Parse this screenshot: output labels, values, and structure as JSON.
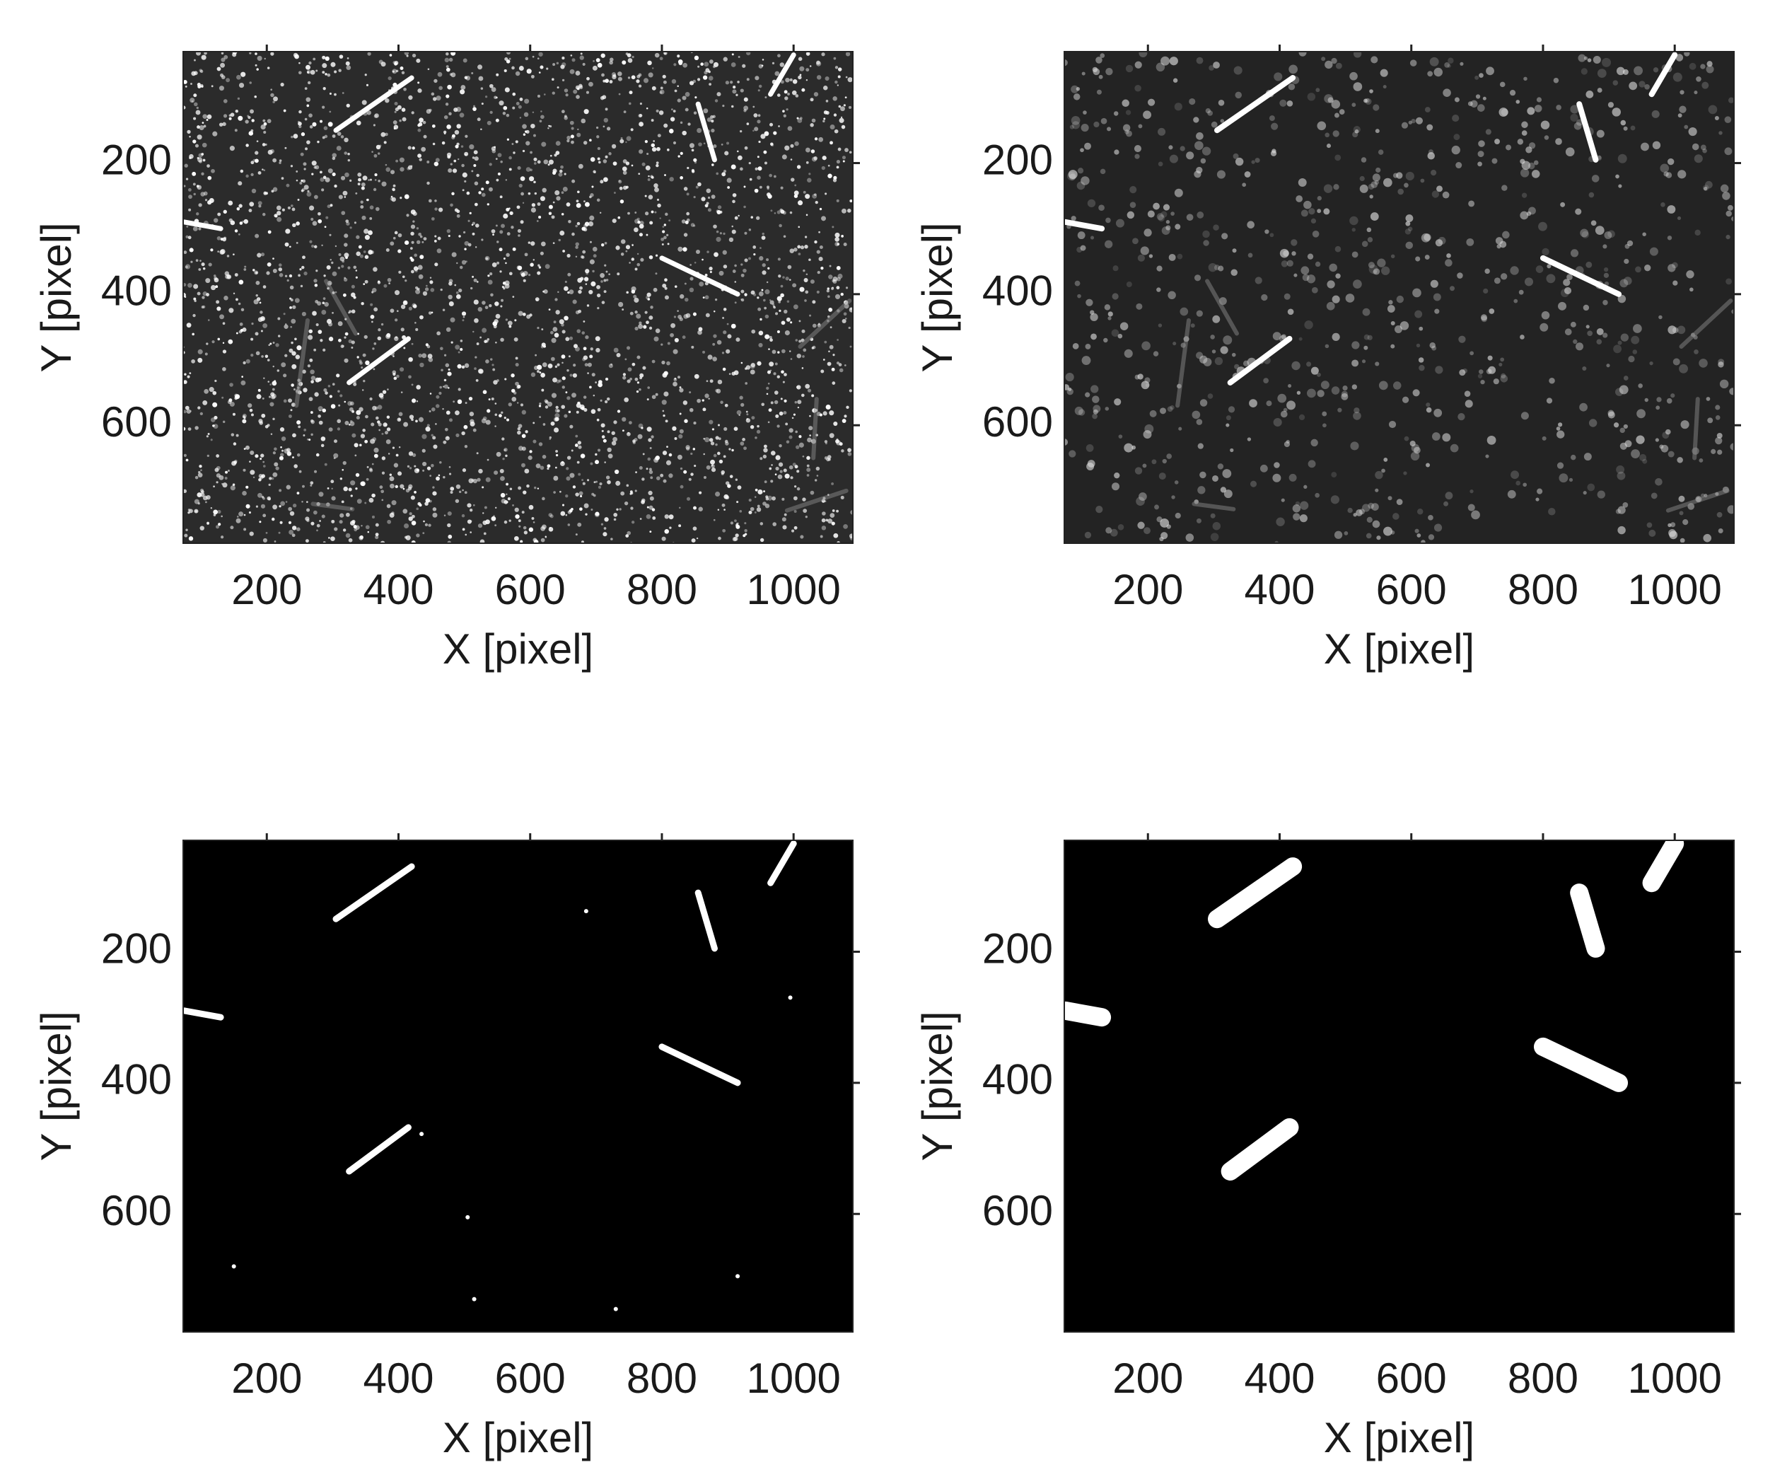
{
  "chart_data": [
    {
      "type": "image",
      "xlabel": "X [pixel]",
      "ylabel": "Y [pixel]",
      "xlim": [
        73,
        1090
      ],
      "ylim": [
        30,
        780
      ],
      "y_reversed": true,
      "xticks": [
        200,
        400,
        600,
        800,
        1000
      ],
      "yticks": [
        200,
        400,
        600
      ]
    },
    {
      "type": "image",
      "xlabel": "X [pixel]",
      "ylabel": "Y [pixel]",
      "xlim": [
        73,
        1090
      ],
      "ylim": [
        30,
        780
      ],
      "y_reversed": true,
      "xticks": [
        200,
        400,
        600,
        800,
        1000
      ],
      "yticks": [
        200,
        400,
        600
      ]
    },
    {
      "type": "image",
      "xlabel": "X [pixel]",
      "ylabel": "Y [pixel]",
      "xlim": [
        73,
        1090
      ],
      "ylim": [
        30,
        780
      ],
      "y_reversed": true,
      "xticks": [
        200,
        400,
        600,
        800,
        1000
      ],
      "yticks": [
        200,
        400,
        600
      ]
    },
    {
      "type": "image",
      "xlabel": "X [pixel]",
      "ylabel": "Y [pixel]",
      "xlim": [
        73,
        1090
      ],
      "ylim": [
        30,
        780
      ],
      "y_reversed": true,
      "xticks": [
        200,
        400,
        600,
        800,
        1000
      ],
      "yticks": [
        200,
        400,
        600
      ]
    }
  ]
}
